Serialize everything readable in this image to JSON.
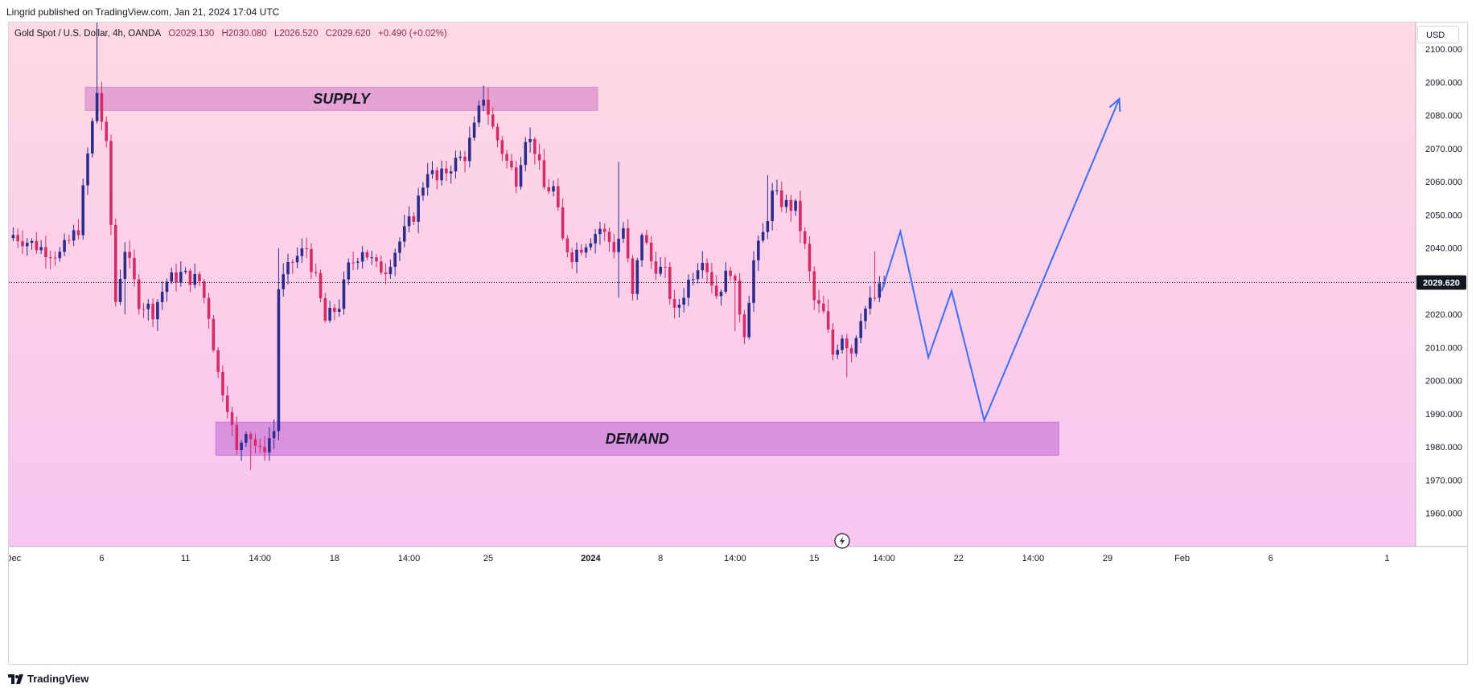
{
  "header": {
    "publisher": "Lingrid published on TradingView.com, Jan 21, 2024 17:04 UTC"
  },
  "legend": {
    "symbol": "Gold Spot / U.S. Dollar, 4h, OANDA",
    "open": "O2029.130",
    "high": "H2030.080",
    "low": "L2026.520",
    "close": "C2029.620",
    "change": "+0.490 (+0.02%)"
  },
  "price_axis": {
    "currency": "USD",
    "last_price_label": "2029.620"
  },
  "footer": {
    "brand": "TradingView"
  },
  "colors": {
    "bg_top": "#ffd9e3",
    "bg_bottom": "#f6c1f3",
    "up": "#2b2d8c",
    "down": "#d32c66",
    "supply": "#d98fcb",
    "demand": "#cd7bd9",
    "forecast": "#3d6df0",
    "last_price_bg": "#131722"
  },
  "chart_data": {
    "type": "candlestick",
    "title": "Gold Spot / U.S. Dollar, 4h, OANDA",
    "ylim": [
      1950,
      2108
    ],
    "y_ticks": [
      1960,
      1970,
      1980,
      1990,
      2000,
      2010,
      2020,
      2030,
      2040,
      2050,
      2060,
      2070,
      2080,
      2090,
      2100
    ],
    "y_tick_labels": [
      "1960.000",
      "1970.000",
      "1980.000",
      "1990.000",
      "2000.000",
      "2010.000",
      "2020.000",
      "2030.000",
      "2040.000",
      "2050.000",
      "2060.000",
      "2070.000",
      "2080.000",
      "2090.000",
      "2100.000"
    ],
    "last_price": 2029.62,
    "x_labels": [
      "Dec",
      "6",
      "11",
      "14:00",
      "18",
      "14:00",
      "25",
      "2024",
      "8",
      "14:00",
      "15",
      "14:00",
      "22",
      "14:00",
      "29",
      "Feb",
      "6",
      "1"
    ],
    "x_label_bars": [
      0,
      19,
      37,
      53,
      69,
      85,
      102,
      124,
      139,
      155,
      172,
      187,
      203,
      219,
      235,
      251,
      270,
      295
    ],
    "x_label_bold": [
      false,
      false,
      false,
      false,
      false,
      false,
      false,
      true,
      false,
      false,
      false,
      false,
      false,
      false,
      false,
      false,
      false,
      false
    ],
    "anchors": [
      [
        0,
        2044
      ],
      [
        6,
        2040
      ],
      [
        10,
        2038
      ],
      [
        14,
        2046
      ],
      [
        16,
        2068
      ],
      [
        18,
        2087
      ],
      [
        20,
        2070
      ],
      [
        22,
        2024
      ],
      [
        24,
        2040
      ],
      [
        27,
        2024
      ],
      [
        30,
        2021
      ],
      [
        33,
        2030
      ],
      [
        36,
        2032
      ],
      [
        40,
        2030
      ],
      [
        42,
        2020
      ],
      [
        44,
        2002
      ],
      [
        46,
        1993
      ],
      [
        48,
        1978
      ],
      [
        50,
        1986
      ],
      [
        53,
        1978
      ],
      [
        56,
        1985
      ],
      [
        57,
        2028
      ],
      [
        60,
        2036
      ],
      [
        63,
        2040
      ],
      [
        65,
        2030
      ],
      [
        67,
        2018
      ],
      [
        70,
        2023
      ],
      [
        72,
        2034
      ],
      [
        75,
        2040
      ],
      [
        78,
        2034
      ],
      [
        80,
        2034
      ],
      [
        83,
        2042
      ],
      [
        86,
        2050
      ],
      [
        89,
        2064
      ],
      [
        91,
        2060
      ],
      [
        94,
        2065
      ],
      [
        97,
        2068
      ],
      [
        99,
        2076
      ],
      [
        101,
        2086
      ],
      [
        103,
        2076
      ],
      [
        106,
        2066
      ],
      [
        108,
        2061
      ],
      [
        110,
        2074
      ],
      [
        112,
        2070
      ],
      [
        114,
        2058
      ],
      [
        116,
        2058
      ],
      [
        118,
        2042
      ],
      [
        120,
        2038
      ],
      [
        123,
        2042
      ],
      [
        126,
        2046
      ],
      [
        129,
        2040
      ],
      [
        131,
        2046
      ],
      [
        133,
        2025
      ],
      [
        135,
        2045
      ],
      [
        137,
        2036
      ],
      [
        140,
        2032
      ],
      [
        142,
        2020
      ],
      [
        145,
        2030
      ],
      [
        148,
        2038
      ],
      [
        151,
        2026
      ],
      [
        154,
        2034
      ],
      [
        157,
        2015
      ],
      [
        159,
        2036
      ],
      [
        161,
        2044
      ],
      [
        163,
        2056
      ],
      [
        166,
        2053
      ],
      [
        168,
        2052
      ],
      [
        170,
        2040
      ],
      [
        172,
        2024
      ],
      [
        174,
        2020
      ],
      [
        176,
        2008
      ],
      [
        178,
        2014
      ],
      [
        180,
        2009
      ],
      [
        182,
        2020
      ],
      [
        185,
        2025
      ],
      [
        187,
        2029.6
      ]
    ],
    "supply_zone": {
      "label": "SUPPLY",
      "from_bar": 16,
      "to_bar": 126,
      "low": 2081.5,
      "high": 2088.5
    },
    "demand_zone": {
      "label": "DEMAND",
      "from_bar": 44,
      "to_bar": 225,
      "low": 1977.5,
      "high": 1987.5
    },
    "forecast_path": [
      [
        187,
        2027
      ],
      [
        191,
        2045
      ],
      [
        197,
        2007
      ],
      [
        202,
        2027
      ],
      [
        209,
        1988
      ],
      [
        238,
        2085
      ]
    ]
  }
}
